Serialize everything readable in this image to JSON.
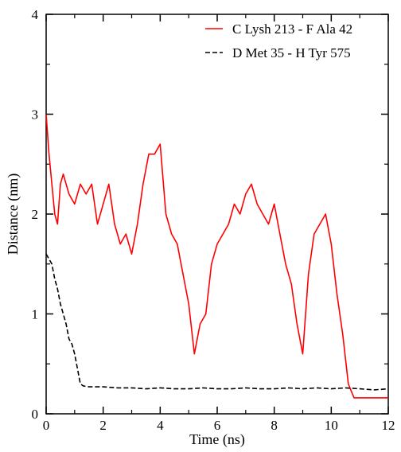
{
  "chart_data": {
    "type": "line",
    "title": "",
    "xlabel": "Time (ns)",
    "ylabel": "Distance (nm)",
    "xlim": [
      0,
      12
    ],
    "ylim": [
      0,
      4
    ],
    "xticks": [
      0,
      2,
      4,
      6,
      8,
      10,
      12
    ],
    "yticks": [
      0,
      1,
      2,
      3,
      4
    ],
    "tick_labels_x": [
      "0",
      "2",
      "4",
      "6",
      "8",
      "10",
      "12"
    ],
    "tick_labels_y": [
      "0",
      "1",
      "2",
      "3",
      "4"
    ],
    "grid": false,
    "legend_position": "top-right",
    "series": [
      {
        "name": "C Lysh 213 - F Ala 42",
        "color": "#ff0000",
        "style": "solid",
        "x": [
          0,
          0.1,
          0.2,
          0.3,
          0.4,
          0.5,
          0.6,
          0.8,
          1.0,
          1.2,
          1.4,
          1.6,
          1.8,
          2.0,
          2.2,
          2.4,
          2.6,
          2.8,
          3.0,
          3.2,
          3.4,
          3.6,
          3.8,
          4.0,
          4.2,
          4.4,
          4.6,
          4.8,
          5.0,
          5.2,
          5.4,
          5.6,
          5.8,
          6.0,
          6.2,
          6.4,
          6.6,
          6.8,
          7.0,
          7.2,
          7.4,
          7.6,
          7.8,
          8.0,
          8.2,
          8.4,
          8.6,
          8.8,
          9.0,
          9.2,
          9.4,
          9.6,
          9.8,
          10.0,
          10.2,
          10.4,
          10.6,
          10.8,
          11.0,
          11.2,
          11.4,
          11.6,
          11.8,
          12.0
        ],
        "values": [
          3.0,
          2.6,
          2.3,
          2.0,
          1.9,
          2.3,
          2.4,
          2.2,
          2.1,
          2.3,
          2.2,
          2.3,
          1.9,
          2.1,
          2.3,
          1.9,
          1.7,
          1.8,
          1.6,
          1.9,
          2.3,
          2.6,
          2.6,
          2.7,
          2.0,
          1.8,
          1.7,
          1.4,
          1.1,
          0.6,
          0.9,
          1.0,
          1.5,
          1.7,
          1.8,
          1.9,
          2.1,
          2.0,
          2.2,
          2.3,
          2.1,
          2.0,
          1.9,
          2.1,
          1.8,
          1.5,
          1.3,
          0.9,
          0.6,
          1.4,
          1.8,
          1.9,
          2.0,
          1.7,
          1.2,
          0.8,
          0.3,
          0.16,
          0.16,
          0.16,
          0.16,
          0.16,
          0.16,
          0.16
        ]
      },
      {
        "name": "D Met 35 - H Tyr 575",
        "color": "#000000",
        "style": "dashed",
        "x": [
          0,
          0.1,
          0.2,
          0.3,
          0.4,
          0.5,
          0.6,
          0.7,
          0.8,
          0.9,
          1.0,
          1.1,
          1.2,
          1.3,
          1.5,
          2.0,
          2.5,
          3.0,
          3.5,
          4.0,
          4.5,
          5.0,
          5.5,
          6.0,
          6.5,
          7.0,
          7.5,
          8.0,
          8.5,
          9.0,
          9.5,
          10.0,
          10.5,
          11.0,
          11.5,
          12.0
        ],
        "values": [
          1.6,
          1.55,
          1.5,
          1.35,
          1.25,
          1.1,
          1.0,
          0.9,
          0.75,
          0.7,
          0.6,
          0.45,
          0.3,
          0.28,
          0.27,
          0.27,
          0.26,
          0.26,
          0.25,
          0.26,
          0.25,
          0.25,
          0.26,
          0.25,
          0.25,
          0.26,
          0.25,
          0.25,
          0.26,
          0.25,
          0.26,
          0.25,
          0.26,
          0.25,
          0.24,
          0.25
        ]
      }
    ]
  }
}
